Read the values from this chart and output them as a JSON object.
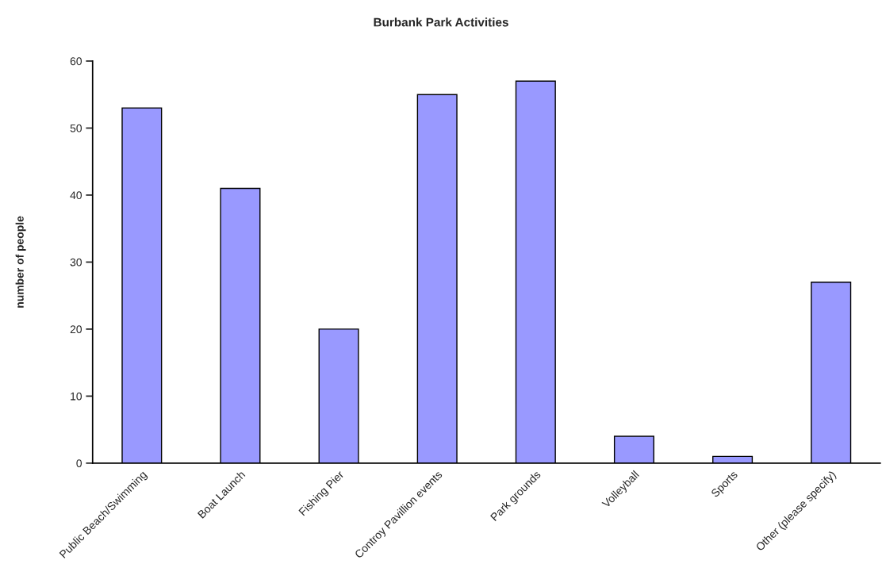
{
  "chart_data": {
    "type": "bar",
    "title": "Burbank Park Activities",
    "ylabel": "number of people",
    "categories": [
      "Public Beach/Swimming",
      "Boat Launch",
      "Fishing Pier",
      "Controy Pavillion events",
      "Park grounds",
      "Volleyball",
      "Sports",
      "Other (please specify)"
    ],
    "values": [
      53,
      41,
      20,
      55,
      57,
      4,
      1,
      27
    ],
    "color": "#9999ff",
    "ylim": [
      0,
      60
    ],
    "yticks": [
      0,
      10,
      20,
      30,
      40,
      50,
      60
    ],
    "grid": false,
    "legend": false
  }
}
